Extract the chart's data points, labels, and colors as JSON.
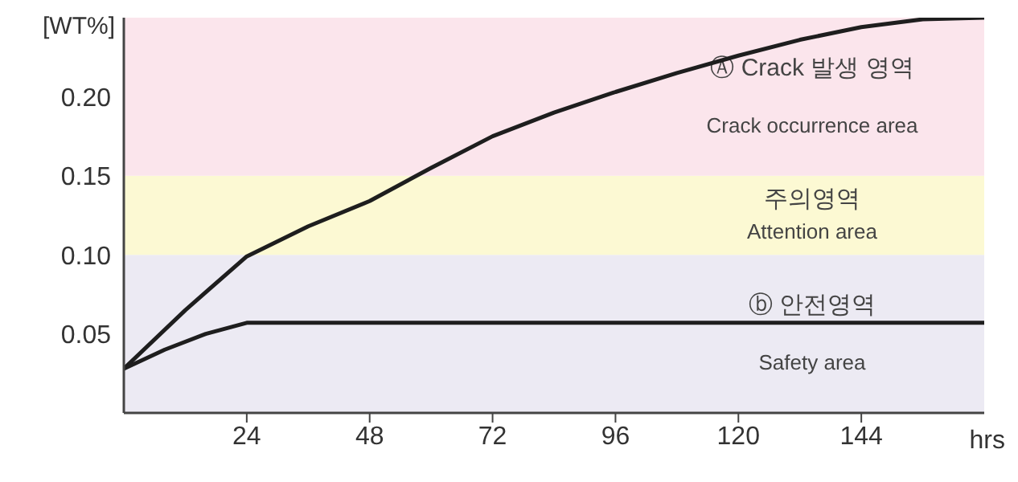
{
  "chart_data": {
    "type": "line",
    "ylabel": "[WT%]",
    "xlabel": "hrs",
    "xlim": [
      0,
      168
    ],
    "xticks": [
      24,
      48,
      72,
      96,
      120,
      144
    ],
    "ylim": [
      0,
      0.25
    ],
    "yticks": [
      0.05,
      {
        "value": 0.1,
        "label": "0.10"
      },
      0.15,
      {
        "value": 0.2,
        "label": "0.20"
      }
    ],
    "grid": false,
    "marker": "none",
    "line_style": "solid",
    "series": [
      {
        "color": "#1e1e1e",
        "x": [
          0,
          12,
          24,
          36,
          48,
          60,
          72,
          84,
          96,
          108,
          120,
          132,
          144,
          156,
          168
        ],
        "values": [
          0.028,
          0.065,
          0.099,
          0.118,
          0.134,
          0.155,
          0.175,
          0.19,
          0.203,
          0.215,
          0.226,
          0.236,
          0.244,
          0.249,
          0.25
        ]
      },
      {
        "color": "#1e1e1e",
        "x": [
          0,
          8,
          16,
          24,
          168
        ],
        "values": [
          0.028,
          0.04,
          0.05,
          0.057,
          0.057
        ]
      }
    ],
    "bands": [
      {
        "axis": "y",
        "from": 0,
        "to": 0.1,
        "color": "#eceaf3",
        "label": "ⓑ 안전영역\nSafety area"
      },
      {
        "axis": "y",
        "from": 0.1,
        "to": 0.15,
        "color": "#fcf9d3",
        "label": "주의영역\nAttention area"
      },
      {
        "axis": "y",
        "from": 0.15,
        "to": 0.25,
        "color": "#fbe5ec",
        "label": "Ⓐ Crack 발생 영역\nCrack occurrence area"
      }
    ]
  }
}
